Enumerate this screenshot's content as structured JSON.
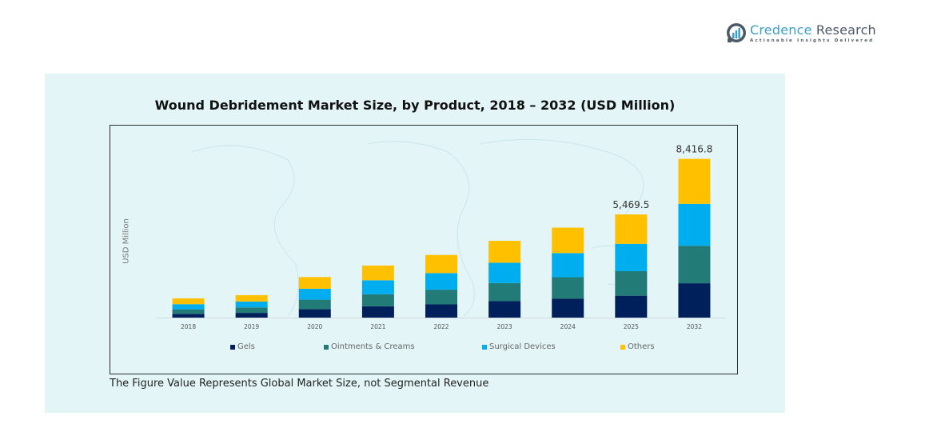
{
  "brand": {
    "name_part1": "Credence",
    "name_part2": " Research",
    "tagline": "Actionable Insights Delivered",
    "logo_icon": "bar-chart-circle-icon"
  },
  "footnote": "The Figure Value Represents Global Market Size, not Segmental Revenue",
  "colors": {
    "panel_bg": "#e3f5f6",
    "Gels": "#00205b",
    "Ointments & Creams": "#237b78",
    "Surgical Devices": "#00aeef",
    "Others": "#ffc000"
  },
  "chart_data": {
    "type": "bar",
    "stacked": true,
    "title": "Wound Debridement Market Size, by Product, 2018 – 2032 (USD Million)",
    "xlabel": "",
    "ylabel": "USD Million",
    "categories": [
      "2018",
      "2019",
      "2020",
      "2021",
      "2022",
      "2023",
      "2024",
      "2025",
      "2032"
    ],
    "series": [
      {
        "name": "Gels",
        "values": [
          200,
          250,
          450,
          600,
          700,
          870,
          1010,
          1160,
          1820
        ]
      },
      {
        "name": "Ointments & Creams",
        "values": [
          240,
          290,
          500,
          640,
          780,
          960,
          1130,
          1300,
          1990
        ]
      },
      {
        "name": "Surgical Devices",
        "values": [
          270,
          310,
          580,
          740,
          880,
          1080,
          1280,
          1450,
          2220
        ]
      },
      {
        "name": "Others",
        "values": [
          310,
          340,
          620,
          780,
          960,
          1160,
          1350,
          1559.5,
          2386.8
        ]
      }
    ],
    "data_labels": [
      {
        "category": "2025",
        "text": "5,469.5"
      },
      {
        "category": "2032",
        "text": "8,416.8"
      }
    ],
    "ylim": [
      0,
      9500
    ],
    "grid": false,
    "y_ticks_shown": false,
    "legend_position": "bottom"
  }
}
